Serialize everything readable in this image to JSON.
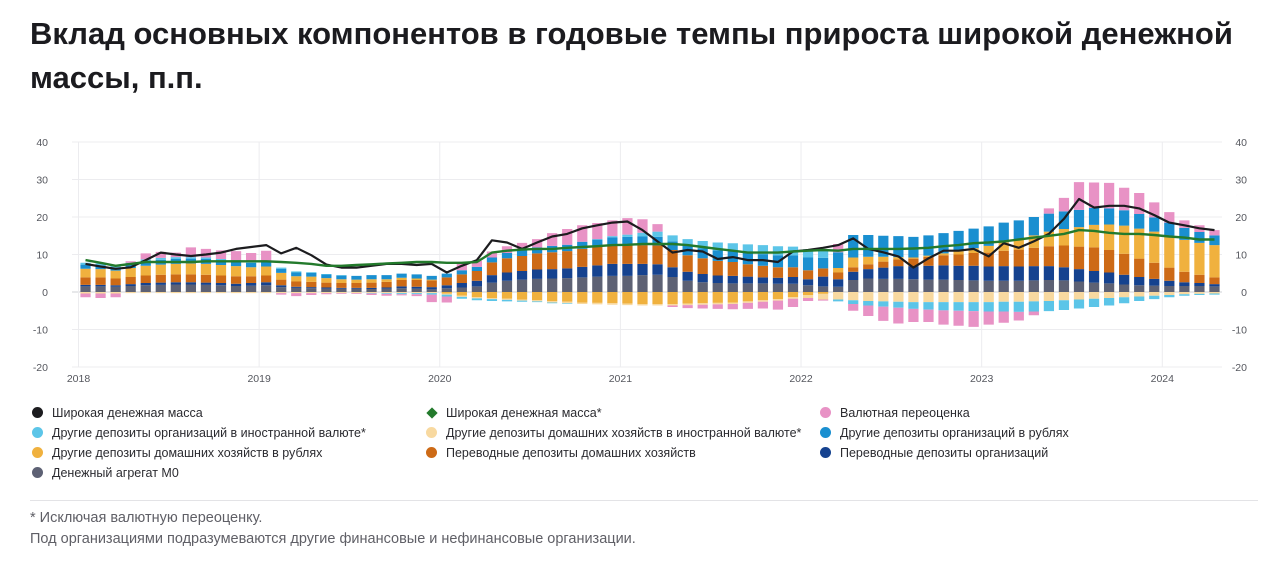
{
  "title": "Вклад основных компонентов в годовые темпы прироста широкой денежной массы, п.п.",
  "footnotes": {
    "line1": "* Исключая валютную переоценку.",
    "line2": "Под организациями подразумеваются другие финансовые и нефинансовые организации."
  },
  "chart_data": {
    "type": "bar",
    "stacked": true,
    "ylim": [
      -20,
      40
    ],
    "y_ticks": [
      -20,
      -10,
      0,
      10,
      20,
      30,
      40
    ],
    "x_tick_labels": [
      "2018",
      "2019",
      "2020",
      "2021",
      "2022",
      "2023",
      "2024"
    ],
    "x_start": "2018-01",
    "x_end": "2024-04",
    "frequency": "monthly",
    "grid": true,
    "legend_position": "bottom",
    "colors": {
      "m0": "#5d6174",
      "ent_transfer": "#15428f",
      "hh_transfer": "#cd6a16",
      "hh_rub": "#f0b13e",
      "ent_rub": "#1a8fd0",
      "hh_fx": "#f8d9a0",
      "ent_fx": "#5cc5e8",
      "fx_reval": "#e892c5",
      "broad": "#1c1c1f",
      "broad_excl": "#237a2c"
    },
    "series": [
      {
        "key": "m0",
        "name": "Денежный агрегат М0",
        "values": [
          1.5,
          1.5,
          1.4,
          1.6,
          1.8,
          1.9,
          2.0,
          2.0,
          1.9,
          1.8,
          1.6,
          1.7,
          1.8,
          1.3,
          1.1,
          1.0,
          0.9,
          0.9,
          0.9,
          0.8,
          0.9,
          1.0,
          0.9,
          0.7,
          1.0,
          1.2,
          1.5,
          2.5,
          3.0,
          3.3,
          3.5,
          3.6,
          3.7,
          3.9,
          4.1,
          4.3,
          4.3,
          4.5,
          4.6,
          4.0,
          3.0,
          2.6,
          2.4,
          2.3,
          2.3,
          2.3,
          2.2,
          2.2,
          1.8,
          1.5,
          1.4,
          3.2,
          3.6,
          3.5,
          3.5,
          3.4,
          3.3,
          3.3,
          3.2,
          3.1,
          3.0,
          3.0,
          3.0,
          3.1,
          3.2,
          3.1,
          2.8,
          2.5,
          2.3,
          2.0,
          1.8,
          1.7,
          1.6,
          1.6,
          1.6,
          1.5
        ]
      },
      {
        "key": "ent_transfer",
        "name": "Переводные депозиты организаций",
        "values": [
          0.4,
          0.4,
          0.4,
          0.5,
          0.6,
          0.6,
          0.6,
          0.6,
          0.6,
          0.6,
          0.6,
          0.7,
          0.8,
          0.5,
          0.3,
          0.3,
          0.3,
          0.2,
          0.2,
          0.3,
          0.3,
          0.5,
          0.5,
          0.6,
          0.8,
          1.2,
          1.5,
          2.0,
          2.2,
          2.3,
          2.5,
          2.5,
          2.6,
          2.8,
          3.0,
          3.2,
          3.2,
          3.0,
          2.8,
          2.6,
          2.4,
          2.2,
          2.0,
          2.0,
          1.8,
          1.6,
          1.6,
          1.8,
          1.6,
          2.6,
          2.0,
          2.2,
          2.5,
          3.0,
          3.4,
          3.5,
          3.7,
          3.8,
          3.8,
          3.9,
          3.8,
          3.9,
          3.8,
          3.8,
          3.7,
          3.5,
          3.3,
          3.1,
          2.9,
          2.6,
          2.2,
          1.8,
          1.4,
          1.0,
          0.8,
          0.6
        ]
      },
      {
        "key": "hh_transfer",
        "name": "Переводные депозиты домашних хозяйств",
        "values": [
          2.0,
          2.0,
          1.8,
          1.9,
          2.0,
          2.1,
          2.1,
          2.1,
          2.1,
          2.0,
          2.0,
          1.8,
          1.8,
          1.5,
          1.4,
          1.4,
          1.3,
          1.3,
          1.3,
          1.4,
          1.5,
          1.7,
          1.8,
          1.8,
          2.1,
          2.3,
          2.6,
          3.4,
          3.8,
          4.0,
          4.3,
          4.5,
          4.6,
          4.8,
          4.9,
          5.0,
          5.0,
          5.0,
          5.0,
          4.6,
          4.4,
          4.2,
          3.9,
          3.7,
          3.3,
          3.1,
          2.8,
          2.6,
          2.4,
          2.2,
          1.8,
          1.2,
          1.3,
          1.6,
          1.8,
          2.0,
          2.4,
          2.7,
          3.0,
          3.4,
          3.7,
          4.1,
          4.5,
          4.9,
          5.3,
          5.8,
          6.0,
          6.3,
          6.0,
          5.6,
          4.9,
          4.3,
          3.5,
          2.8,
          2.2,
          1.8
        ]
      },
      {
        "key": "hh_rub",
        "name": "Другие депозиты домашних хозяйств в рублях",
        "values": [
          2.3,
          2.2,
          2.1,
          2.4,
          2.6,
          2.7,
          2.8,
          2.9,
          2.9,
          2.8,
          2.7,
          2.4,
          2.4,
          1.8,
          1.4,
          1.4,
          1.2,
          1.0,
          0.9,
          0.9,
          0.7,
          0.6,
          0.4,
          0.2,
          -0.4,
          -1.0,
          -1.4,
          -1.6,
          -1.8,
          -2.0,
          -2.2,
          -2.4,
          -2.6,
          -2.8,
          -2.9,
          -3.0,
          -3.1,
          -3.2,
          -3.2,
          -3.2,
          -3.1,
          -3.0,
          -2.9,
          -2.8,
          -2.5,
          -2.2,
          -1.9,
          -1.4,
          -0.8,
          -0.5,
          1.2,
          2.6,
          2.0,
          1.3,
          0.6,
          0.3,
          0.3,
          0.5,
          0.9,
          1.3,
          1.8,
          2.3,
          2.8,
          3.3,
          3.9,
          4.4,
          5.2,
          6.0,
          6.8,
          7.5,
          8.0,
          8.3,
          8.5,
          8.5,
          8.5,
          8.6
        ]
      },
      {
        "key": "ent_rub",
        "name": "Другие депозиты организаций в рублях",
        "values": [
          1.1,
          1.0,
          0.9,
          1.0,
          1.2,
          1.3,
          1.3,
          1.3,
          1.3,
          1.2,
          1.2,
          1.2,
          1.2,
          1.1,
          1.0,
          1.0,
          1.0,
          1.0,
          1.0,
          1.1,
          1.1,
          1.1,
          1.1,
          1.0,
          1.0,
          1.1,
          1.1,
          1.3,
          1.4,
          1.5,
          1.6,
          1.7,
          1.7,
          1.9,
          2.0,
          2.1,
          2.2,
          2.3,
          2.3,
          2.3,
          2.5,
          2.6,
          2.8,
          2.8,
          3.0,
          3.1,
          3.2,
          3.2,
          3.4,
          2.8,
          4.2,
          6.0,
          5.8,
          5.6,
          5.6,
          5.5,
          5.4,
          5.4,
          5.4,
          5.2,
          5.2,
          5.2,
          5.0,
          4.9,
          4.8,
          4.7,
          4.6,
          4.5,
          4.3,
          4.1,
          3.9,
          3.8,
          3.5,
          3.2,
          2.9,
          2.6
        ]
      },
      {
        "key": "hh_fx",
        "name": "Другие депозиты домашних хозяйств в иностранной валюте*",
        "values": [
          -0.4,
          -0.4,
          -0.4,
          -0.3,
          -0.3,
          -0.3,
          -0.3,
          -0.3,
          -0.3,
          -0.3,
          -0.3,
          -0.3,
          -0.3,
          -0.3,
          -0.3,
          -0.3,
          -0.3,
          -0.3,
          -0.3,
          -0.3,
          -0.3,
          -0.3,
          -0.3,
          -0.3,
          -0.3,
          -0.3,
          -0.3,
          -0.3,
          -0.3,
          -0.3,
          -0.3,
          -0.4,
          -0.4,
          -0.4,
          -0.4,
          -0.4,
          -0.4,
          -0.4,
          -0.4,
          -0.4,
          -0.4,
          -0.4,
          -0.4,
          -0.4,
          -0.4,
          -0.4,
          -0.4,
          -0.4,
          -0.8,
          -1.5,
          -2.0,
          -2.2,
          -2.4,
          -2.5,
          -2.6,
          -2.7,
          -2.7,
          -2.7,
          -2.7,
          -2.7,
          -2.7,
          -2.6,
          -2.6,
          -2.5,
          -2.4,
          -2.2,
          -2.0,
          -1.8,
          -1.6,
          -1.4,
          -1.2,
          -1.0,
          -0.8,
          -0.6,
          -0.5,
          -0.4
        ]
      },
      {
        "key": "ent_fx",
        "name": "Другие депозиты организаций в иностранной валюте*",
        "values": [
          0.5,
          0.5,
          0.4,
          0.4,
          0.5,
          0.5,
          0.5,
          0.4,
          0.4,
          0.4,
          0.4,
          0.4,
          0.4,
          0.3,
          0.3,
          0.2,
          0.1,
          0.1,
          0.0,
          -0.1,
          -0.2,
          -0.3,
          -0.3,
          -0.4,
          -0.5,
          -0.5,
          -0.5,
          -0.5,
          -0.4,
          -0.3,
          -0.2,
          -0.2,
          -0.1,
          0.0,
          0.1,
          0.3,
          0.6,
          1.0,
          1.4,
          1.6,
          1.8,
          2.0,
          2.1,
          2.2,
          2.3,
          2.4,
          2.4,
          2.3,
          2.2,
          2.0,
          -0.5,
          -1.0,
          -1.2,
          -1.4,
          -1.6,
          -1.8,
          -2.0,
          -2.2,
          -2.3,
          -2.4,
          -2.5,
          -2.6,
          -2.7,
          -2.7,
          -2.7,
          -2.6,
          -2.4,
          -2.2,
          -2.0,
          -1.6,
          -1.2,
          -0.9,
          -0.6,
          -0.4,
          -0.3,
          -0.3
        ]
      },
      {
        "key": "fx_reval",
        "name": "Валютная переоценка",
        "values": [
          -1.0,
          -1.2,
          -1.0,
          0.4,
          1.6,
          1.6,
          1.2,
          2.6,
          2.3,
          2.3,
          2.4,
          2.2,
          2.6,
          -0.4,
          -0.8,
          -0.5,
          -0.3,
          -0.2,
          -0.2,
          -0.4,
          -0.5,
          -0.3,
          -0.5,
          -2.0,
          -1.6,
          1.8,
          1.6,
          1.6,
          1.8,
          2.0,
          2.2,
          3.4,
          4.2,
          4.4,
          4.3,
          4.2,
          4.4,
          3.6,
          2.0,
          -0.4,
          -0.8,
          -1.0,
          -1.2,
          -1.4,
          -1.6,
          -1.8,
          -2.4,
          -2.2,
          -0.8,
          -0.3,
          2.2,
          -1.8,
          -2.8,
          -3.8,
          -4.2,
          -3.5,
          -3.3,
          -3.8,
          -4.0,
          -4.2,
          -3.5,
          -3.0,
          -2.3,
          -1.0,
          1.4,
          3.6,
          7.4,
          6.8,
          6.8,
          6.0,
          5.6,
          4.0,
          2.8,
          2.0,
          1.8,
          1.4
        ]
      }
    ],
    "lines": [
      {
        "key": "broad",
        "name": "Широкая денежная масса",
        "values": [
          7.5,
          6.8,
          6.2,
          6.6,
          8.5,
          10.5,
          10.0,
          9.6,
          10.0,
          10.5,
          11.5,
          12.0,
          12.5,
          10.3,
          11.8,
          9.8,
          7.3,
          6.5,
          6.5,
          7.0,
          7.5,
          7.5,
          7.2,
          7.5,
          5.2,
          7.0,
          8.5,
          13.8,
          13.2,
          11.5,
          13.2,
          14.8,
          15.5,
          17.0,
          17.8,
          18.5,
          18.8,
          16.5,
          13.5,
          10.5,
          11.2,
          10.8,
          8.8,
          9.3,
          8.5,
          8.5,
          8.0,
          10.8,
          11.2,
          11.8,
          12.5,
          14.3,
          11.5,
          10.6,
          9.5,
          6.5,
          9.0,
          11.0,
          11.0,
          11.5,
          9.5,
          13.0,
          11.8,
          13.5,
          15.5,
          19.5,
          24.8,
          22.5,
          23.0,
          23.0,
          22.3,
          20.5,
          18.5,
          17.8,
          17.0,
          16.5
        ]
      },
      {
        "key": "broad_excl",
        "name": "Широкая денежная масса*",
        "values": [
          8.5,
          7.8,
          7.0,
          7.5,
          8.0,
          8.0,
          8.0,
          8.0,
          8.2,
          8.2,
          8.2,
          8.2,
          8.2,
          8.0,
          7.8,
          7.5,
          7.0,
          7.0,
          7.2,
          7.4,
          7.6,
          7.8,
          8.0,
          8.0,
          7.8,
          7.8,
          8.0,
          10.5,
          11.0,
          11.3,
          11.5,
          11.5,
          11.8,
          12.0,
          12.2,
          12.5,
          12.6,
          12.8,
          12.8,
          12.8,
          12.5,
          12.0,
          11.5,
          11.0,
          10.5,
          10.5,
          10.5,
          10.8,
          11.0,
          11.2,
          11.0,
          11.5,
          11.5,
          11.5,
          11.5,
          11.6,
          11.8,
          12.2,
          12.5,
          13.0,
          13.2,
          13.5,
          14.0,
          14.5,
          15.0,
          15.5,
          16.5,
          16.3,
          15.8,
          15.5,
          15.5,
          15.2,
          14.8,
          14.5,
          14.0,
          14.0
        ]
      }
    ],
    "legend": [
      {
        "key": "broad",
        "name": "Широкая денежная масса",
        "marker": "circle"
      },
      {
        "key": "broad_excl",
        "name": "Широкая денежная масса*",
        "marker": "diamond"
      },
      {
        "key": "fx_reval",
        "name": "Валютная переоценка",
        "marker": "circle"
      },
      {
        "key": "ent_fx",
        "name": "Другие депозиты организаций в иностранной валюте*",
        "marker": "circle"
      },
      {
        "key": "hh_fx",
        "name": "Другие депозиты домашних хозяйств в иностранной валюте*",
        "marker": "circle"
      },
      {
        "key": "ent_rub",
        "name": "Другие депозиты организаций в рублях",
        "marker": "circle"
      },
      {
        "key": "hh_rub",
        "name": "Другие депозиты домашних хозяйств в рублях",
        "marker": "circle"
      },
      {
        "key": "hh_transfer",
        "name": "Переводные депозиты домашних хозяйств",
        "marker": "circle"
      },
      {
        "key": "ent_transfer",
        "name": "Переводные депозиты организаций",
        "marker": "circle"
      },
      {
        "key": "m0",
        "name": "Денежный агрегат М0",
        "marker": "circle"
      }
    ]
  }
}
